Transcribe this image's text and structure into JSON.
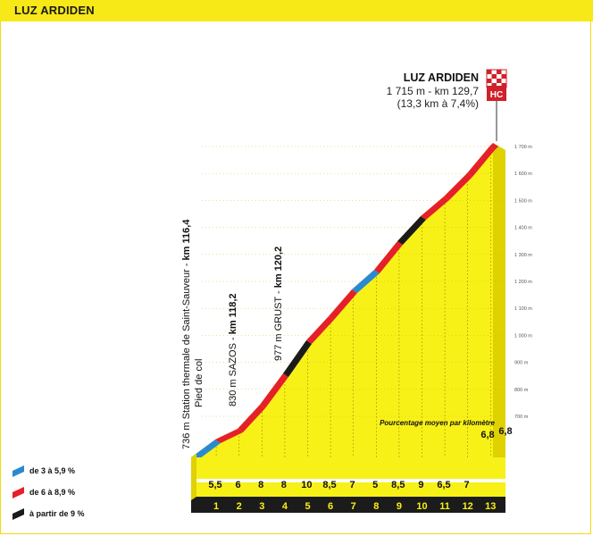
{
  "header": {
    "title": "LUZ ARDIDEN"
  },
  "summit": {
    "name": "LUZ ARDIDEN",
    "line1": "1 715 m - km 129,7",
    "line2": "(13,3 km à 7,4%)",
    "category": "HC"
  },
  "waypoints": [
    {
      "label_normal": "736 m Station thermale de Saint-Sauveur - ",
      "label_bold": "km 116,4",
      "sub": "Pied de col"
    },
    {
      "label_normal": "830 m SAZOS - ",
      "label_bold": "km 118,2"
    },
    {
      "label_normal": "977 m GRUST - ",
      "label_bold": "km 120,2"
    }
  ],
  "chart_data": {
    "type": "area",
    "title": "LUZ ARDIDEN",
    "ylabel": "",
    "xlabel": "",
    "ylim": [
      700,
      1700
    ],
    "y_ticks": [
      "700 m",
      "800 m",
      "900 m",
      "1 000 m",
      "1 100 m",
      "1 200 m",
      "1 300 m",
      "1 400 m",
      "1 500 m",
      "1 600 m",
      "1 700 m"
    ],
    "km_labels": [
      "1",
      "2",
      "3",
      "4",
      "5",
      "6",
      "7",
      "8",
      "9",
      "10",
      "11",
      "12",
      "13"
    ],
    "gradients": [
      "5,5",
      "6",
      "8",
      "8",
      "10",
      "8,5",
      "7",
      "5",
      "8,5",
      "9",
      "6,5",
      "7",
      "6,8",
      "6,8"
    ],
    "gradient_note": "Pourcentage moyen par kilomètre",
    "legend": [
      {
        "label": "de 3 à 5,9 %",
        "color": "#2a8ad0"
      },
      {
        "label": "de 6 à 8,9 %",
        "color": "#e5202a"
      },
      {
        "label": "à partir de 9 %",
        "color": "#1b1b1b"
      }
    ]
  }
}
